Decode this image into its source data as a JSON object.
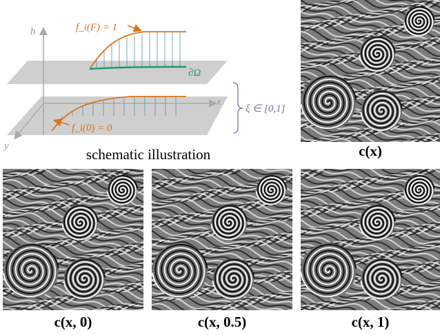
{
  "schematic": {
    "labels": {
      "h": "h",
      "x": "x",
      "y": "y",
      "top": "f_i(F) = 1",
      "boundary": "∂Ω",
      "range": "ξ ∈ [0,1]",
      "bottom": "f_i(0) = 0"
    },
    "caption": "schematic illustration"
  },
  "panels": [
    {
      "caption": "c(x)"
    },
    {
      "caption": "c(x, 0)"
    },
    {
      "caption": "c(x, 0.5)"
    },
    {
      "caption": "c(x, 1)"
    }
  ]
}
